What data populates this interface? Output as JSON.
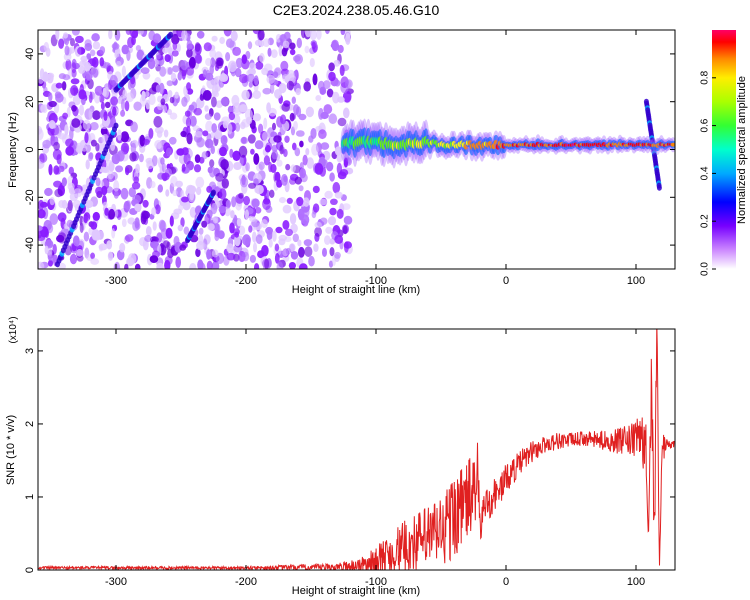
{
  "title": "C2E3.2024.238.05.46.G10",
  "chart_data": [
    {
      "type": "heatmap",
      "xlabel": "Height of straight line (km)",
      "ylabel": "Frequency (Hz)",
      "xlim": [
        -360,
        130
      ],
      "ylim": [
        -50,
        50
      ],
      "xticks": [
        "-300",
        "-200",
        "-100",
        "0",
        "100"
      ],
      "yticks": [
        "-40",
        "-20",
        "0",
        "20",
        "40"
      ],
      "colorbar": {
        "label": "Normalized spectral amplitude",
        "range": [
          0,
          1
        ],
        "ticks": [
          "0.0",
          "0.2",
          "0.4",
          "0.6",
          "0.8"
        ],
        "colors": [
          "#ffffff",
          "#8800ff",
          "#0000ff",
          "#00ccff",
          "#00ff80",
          "#66ff00",
          "#ffff00",
          "#ff8800",
          "#ff0000",
          "#ff0066"
        ]
      },
      "noise_region_x": [
        -360,
        -120
      ],
      "signal_band": [
        {
          "x": -125,
          "freq": 3,
          "amp": 0.45
        },
        {
          "x": -100,
          "freq": 3,
          "amp": 0.5
        },
        {
          "x": -80,
          "freq": 2,
          "amp": 0.55
        },
        {
          "x": -60,
          "freq": 3,
          "amp": 0.6
        },
        {
          "x": -40,
          "freq": 2,
          "amp": 0.65
        },
        {
          "x": -20,
          "freq": 2,
          "amp": 0.75
        },
        {
          "x": 0,
          "freq": 2,
          "amp": 0.8
        },
        {
          "x": 20,
          "freq": 2,
          "amp": 0.85
        },
        {
          "x": 40,
          "freq": 2,
          "amp": 0.9
        },
        {
          "x": 60,
          "freq": 2,
          "amp": 0.9
        },
        {
          "x": 80,
          "freq": 2,
          "amp": 0.85
        },
        {
          "x": 100,
          "freq": 2,
          "amp": 0.8
        },
        {
          "x": 130,
          "freq": 2,
          "amp": 0.85
        }
      ],
      "tracks": [
        {
          "x": [
            -345,
            -300
          ],
          "freq": [
            -48,
            10
          ]
        },
        {
          "x": [
            -245,
            -225
          ],
          "freq": [
            -38,
            -18
          ]
        },
        {
          "x": [
            -300,
            -258
          ],
          "freq": [
            25,
            48
          ]
        },
        {
          "x": [
            108,
            118
          ],
          "freq": [
            20,
            -16
          ]
        }
      ]
    },
    {
      "type": "line",
      "xlabel": "Height of straight line (km)",
      "ylabel": "SNR (10 * v/v)",
      "y_multiplier": "(x10⁴)",
      "xlim": [
        -360,
        130
      ],
      "ylim": [
        0,
        3.3
      ],
      "xticks": [
        "-300",
        "-200",
        "-100",
        "0",
        "100"
      ],
      "yticks": [
        "0",
        "1",
        "2",
        "3"
      ],
      "series": [
        {
          "color": "#e02020",
          "x": [
            -360,
            -200,
            -130,
            -110,
            -100,
            -90,
            -80,
            -70,
            -60,
            -50,
            -45,
            -40,
            -35,
            -30,
            -25,
            -22,
            -20,
            -18,
            -15,
            -10,
            -5,
            0,
            10,
            20,
            30,
            40,
            50,
            60,
            70,
            80,
            90,
            100,
            104,
            108,
            110,
            112,
            114,
            116,
            118,
            120,
            125,
            130
          ],
          "y": [
            0.03,
            0.03,
            0.04,
            0.07,
            0.12,
            0.2,
            0.3,
            0.38,
            0.45,
            0.55,
            0.6,
            0.75,
            0.85,
            0.95,
            1.05,
            1.3,
            0.55,
            0.8,
            0.9,
            1.0,
            1.1,
            1.25,
            1.45,
            1.62,
            1.72,
            1.77,
            1.78,
            1.8,
            1.78,
            1.77,
            1.76,
            1.78,
            1.9,
            1.5,
            0.9,
            2.6,
            0.5,
            3.1,
            0.4,
            1.6,
            1.72,
            1.72
          ],
          "noise": [
            0.02,
            0.02,
            0.05,
            0.12,
            0.2,
            0.3,
            0.35,
            0.4,
            0.45,
            0.5,
            0.6,
            0.6,
            0.55,
            0.6,
            0.55,
            0.5,
            0.3,
            0.25,
            0.25,
            0.25,
            0.25,
            0.2,
            0.18,
            0.15,
            0.12,
            0.12,
            0.1,
            0.1,
            0.12,
            0.15,
            0.2,
            0.25,
            0.35,
            0.5,
            0.6,
            0.6,
            0.6,
            0.5,
            0.5,
            0.3,
            0.06,
            0.05
          ]
        }
      ]
    }
  ]
}
